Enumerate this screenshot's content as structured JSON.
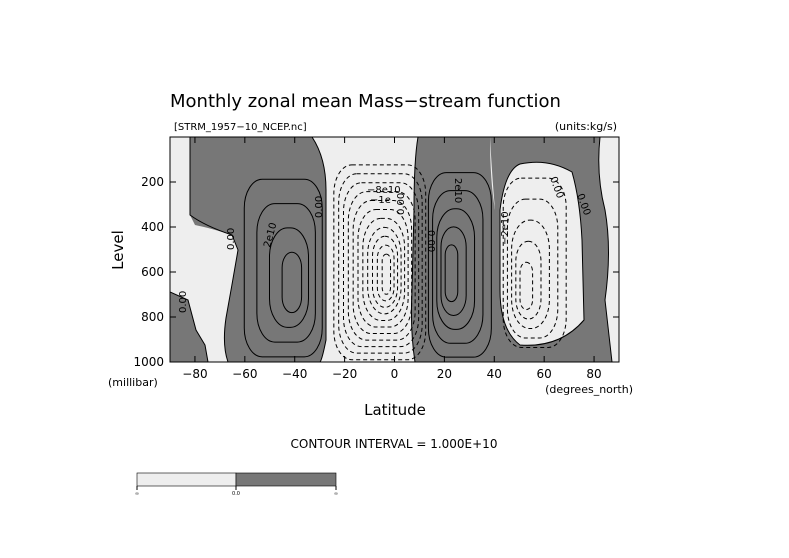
{
  "chart_data": {
    "type": "contour",
    "title": "Monthly zonal mean Mass−stream function",
    "file_label": "[STRM_1957−10_NCEP.nc]",
    "units_label": "(units:kg/s)",
    "xlabel": "Latitude",
    "x_unit_label": "(degrees_north)",
    "ylabel": "Level",
    "y_unit_label": "(millibar)",
    "xlim": [
      -90,
      90
    ],
    "ylim": [
      1000,
      0
    ],
    "x_ticks": [
      -80,
      -60,
      -40,
      -20,
      0,
      20,
      40,
      60,
      80
    ],
    "y_ticks": [
      200,
      400,
      600,
      800,
      1000
    ],
    "contour_interval_label": "CONTOUR INTERVAL = 1.000E+10",
    "contour_interval": 10000000000.0,
    "shading": {
      "negative_color": "#eeeeee",
      "positive_color": "#777777",
      "threshold": 0.0
    },
    "cells": [
      {
        "sign": "positive",
        "lat_range": [
          -62,
          -28
        ],
        "lev_range": [
          150,
          1000
        ],
        "center": [
          -40,
          620
        ],
        "peak_contours": 4
      },
      {
        "sign": "negative",
        "lat_range": [
          -25,
          13
        ],
        "lev_range": [
          110,
          1000
        ],
        "center": [
          -3,
          560
        ],
        "peak_contours": 11
      },
      {
        "sign": "positive",
        "lat_range": [
          13,
          40
        ],
        "lev_range": [
          130,
          1000
        ],
        "center": [
          22,
          560
        ],
        "peak_contours": 5
      },
      {
        "sign": "negative",
        "lat_range": [
          43,
          70
        ],
        "lev_range": [
          150,
          950
        ],
        "center": [
          52,
          650
        ],
        "peak_contours": 5
      }
    ],
    "contour_labels": [
      "0.00",
      "2e10",
      "0.00",
      "−8e10",
      "−1e",
      "0.00",
      "2e10",
      "0.00",
      "−2e10",
      "0.00",
      "0.00",
      "0.00"
    ],
    "colorbar": {
      "tick_labels": [
        "∞",
        "0.0",
        "∞"
      ]
    }
  }
}
